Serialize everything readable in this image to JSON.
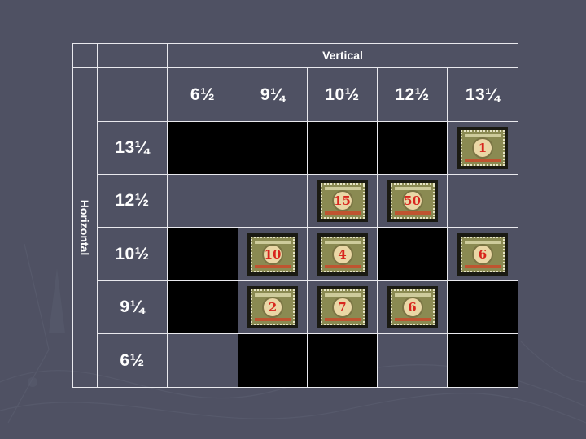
{
  "header": {
    "vertical_label": "Vertical",
    "horizontal_label": "Horizontal"
  },
  "columns": [
    "6½",
    "9¼",
    "10½",
    "12½",
    "13¼"
  ],
  "rows": [
    {
      "label": "13¼",
      "cells": [
        "black",
        "black",
        "black",
        "black",
        "1"
      ]
    },
    {
      "label": "12½",
      "cells": [
        "empty",
        "empty",
        "15",
        "50",
        "empty"
      ]
    },
    {
      "label": "10½",
      "cells": [
        "black",
        "10",
        "4",
        "black",
        "6"
      ]
    },
    {
      "label": "9¼",
      "cells": [
        "black",
        "2",
        "7",
        "6",
        "black"
      ]
    },
    {
      "label": "6½",
      "cells": [
        "empty",
        "black",
        "black",
        "empty",
        "black"
      ]
    }
  ],
  "colors": {
    "background": "#4f5163",
    "grid_line": "#e9e9ee",
    "filled": "#000000",
    "stamp_numeral": "#d8251d"
  }
}
